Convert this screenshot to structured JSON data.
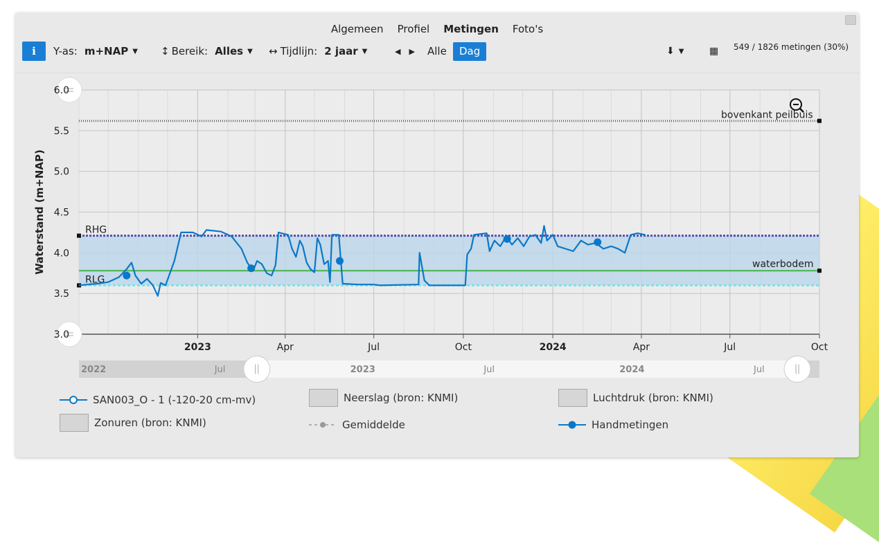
{
  "tabs": {
    "algemeen": "Algemeen",
    "profiel": "Profiel",
    "metingen": "Metingen",
    "fotos": "Foto's"
  },
  "toolbar": {
    "info_label": "i",
    "yas_label": "Y-as:",
    "yas_value": "m+NAP",
    "bereik_label": "Bereik:",
    "bereik_value": "Alles",
    "tijdlijn_label": "Tijdlijn:",
    "tijdlijn_value": "2 jaar",
    "alle_label": "Alle",
    "dag_label": "Dag",
    "metingen_count": "549 / 1826 metingen (30%)"
  },
  "legend": {
    "main_series": "SAN003_O - 1 (-120-20 cm-mv)",
    "neerslag": "Neerslag (bron: KNMI)",
    "luchtdruk": "Luchtdruk (bron: KNMI)",
    "zonuren": "Zonuren (bron: KNMI)",
    "gemiddelde": "Gemiddelde",
    "handmetingen": "Handmetingen"
  },
  "navigator": {
    "labels": [
      "2022",
      "Jul",
      "2023",
      "Jul",
      "2024",
      "Jul"
    ]
  },
  "colors": {
    "series": "#0a78c8",
    "rhg": "#5550a8",
    "rlg": "#79e3ea",
    "waterbodem": "#48b248",
    "bovenkant": "#666666",
    "band": "#bcd6ea",
    "accent": "#1a7fd4",
    "plot_bg": "#ececec"
  },
  "chart_data": {
    "type": "line",
    "ylabel": "Waterstand (m+NAP)",
    "xlabel": "",
    "ylim": [
      3.0,
      6.0
    ],
    "xlim": [
      "2022-09-01",
      "2024-10-01"
    ],
    "yticks": [
      "3.0",
      "3.5",
      "4.0",
      "4.5",
      "5.0",
      "5.5",
      "6.0"
    ],
    "xticks": [
      {
        "date": "2023-01-01",
        "label": "2023",
        "bold": true
      },
      {
        "date": "2023-04-01",
        "label": "Apr",
        "bold": false
      },
      {
        "date": "2023-07-01",
        "label": "Jul",
        "bold": false
      },
      {
        "date": "2023-10-01",
        "label": "Oct",
        "bold": false
      },
      {
        "date": "2024-01-01",
        "label": "2024",
        "bold": true
      },
      {
        "date": "2024-04-01",
        "label": "Apr",
        "bold": false
      },
      {
        "date": "2024-07-01",
        "label": "Jul",
        "bold": false
      },
      {
        "date": "2024-10-01",
        "label": "Oct",
        "bold": false
      }
    ],
    "grid": true,
    "reference_lines": [
      {
        "name": "bovenkant peilbuis",
        "value": 5.62
      },
      {
        "name": "RHG",
        "value": 4.21
      },
      {
        "name": "waterbodem",
        "value": 3.78
      },
      {
        "name": "RLG",
        "value": 3.6
      }
    ],
    "band": [
      3.6,
      4.21
    ],
    "series": [
      {
        "name": "SAN003_O - 1 (-120-20 cm-mv)",
        "points": [
          [
            "2022-09-01",
            3.6
          ],
          [
            "2022-09-10",
            3.61
          ],
          [
            "2022-09-20",
            3.62
          ],
          [
            "2022-10-01",
            3.64
          ],
          [
            "2022-10-12",
            3.7
          ],
          [
            "2022-10-20",
            3.8
          ],
          [
            "2022-10-25",
            3.88
          ],
          [
            "2022-10-29",
            3.72
          ],
          [
            "2022-11-04",
            3.62
          ],
          [
            "2022-11-10",
            3.68
          ],
          [
            "2022-11-16",
            3.6
          ],
          [
            "2022-11-21",
            3.47
          ],
          [
            "2022-11-24",
            3.63
          ],
          [
            "2022-11-29",
            3.6
          ],
          [
            "2022-12-08",
            3.9
          ],
          [
            "2022-12-15",
            4.25
          ],
          [
            "2022-12-27",
            4.25
          ],
          [
            "2023-01-05",
            4.2
          ],
          [
            "2023-01-10",
            4.28
          ],
          [
            "2023-01-25",
            4.26
          ],
          [
            "2023-02-05",
            4.2
          ],
          [
            "2023-02-15",
            4.05
          ],
          [
            "2023-02-21",
            3.88
          ],
          [
            "2023-02-27",
            3.78
          ],
          [
            "2023-03-03",
            3.9
          ],
          [
            "2023-03-08",
            3.86
          ],
          [
            "2023-03-13",
            3.75
          ],
          [
            "2023-03-18",
            3.72
          ],
          [
            "2023-03-22",
            3.85
          ],
          [
            "2023-03-25",
            4.25
          ],
          [
            "2023-04-04",
            4.22
          ],
          [
            "2023-04-08",
            4.05
          ],
          [
            "2023-04-12",
            3.95
          ],
          [
            "2023-04-16",
            4.15
          ],
          [
            "2023-04-19",
            4.08
          ],
          [
            "2023-04-23",
            3.88
          ],
          [
            "2023-04-27",
            3.8
          ],
          [
            "2023-05-01",
            3.76
          ],
          [
            "2023-05-04",
            4.18
          ],
          [
            "2023-05-07",
            4.1
          ],
          [
            "2023-05-11",
            3.86
          ],
          [
            "2023-05-15",
            3.9
          ],
          [
            "2023-05-17",
            3.64
          ],
          [
            "2023-05-19",
            4.22
          ],
          [
            "2023-05-26",
            4.22
          ],
          [
            "2023-05-30",
            3.62
          ],
          [
            "2023-06-15",
            3.61
          ],
          [
            "2023-07-01",
            3.61
          ],
          [
            "2023-07-07",
            3.6
          ],
          [
            "2023-08-16",
            3.61
          ],
          [
            "2023-08-17",
            4.0
          ],
          [
            "2023-08-22",
            3.66
          ],
          [
            "2023-08-27",
            3.6
          ],
          [
            "2023-09-15",
            3.6
          ],
          [
            "2023-10-03",
            3.6
          ],
          [
            "2023-10-05",
            3.98
          ],
          [
            "2023-10-09",
            4.05
          ],
          [
            "2023-10-12",
            4.22
          ],
          [
            "2023-10-25",
            4.24
          ],
          [
            "2023-10-28",
            4.02
          ],
          [
            "2023-11-02",
            4.15
          ],
          [
            "2023-11-08",
            4.08
          ],
          [
            "2023-11-14",
            4.2
          ],
          [
            "2023-11-20",
            4.1
          ],
          [
            "2023-11-26",
            4.18
          ],
          [
            "2023-12-02",
            4.08
          ],
          [
            "2023-12-08",
            4.2
          ],
          [
            "2023-12-14",
            4.22
          ],
          [
            "2023-12-20",
            4.12
          ],
          [
            "2023-12-23",
            4.33
          ],
          [
            "2023-12-26",
            4.15
          ],
          [
            "2024-01-01",
            4.22
          ],
          [
            "2024-01-06",
            4.08
          ],
          [
            "2024-01-14",
            4.05
          ],
          [
            "2024-01-22",
            4.02
          ],
          [
            "2024-01-30",
            4.15
          ],
          [
            "2024-02-06",
            4.1
          ],
          [
            "2024-02-14",
            4.12
          ],
          [
            "2024-02-22",
            4.05
          ],
          [
            "2024-03-01",
            4.08
          ],
          [
            "2024-03-08",
            4.05
          ],
          [
            "2024-03-15",
            4.0
          ],
          [
            "2024-03-21",
            4.22
          ],
          [
            "2024-03-28",
            4.24
          ],
          [
            "2024-04-05",
            4.22
          ]
        ]
      },
      {
        "name": "Handmetingen",
        "points": [
          [
            "2022-10-20",
            3.72
          ],
          [
            "2023-02-25",
            3.81
          ],
          [
            "2023-05-27",
            3.9
          ],
          [
            "2023-11-15",
            4.17
          ],
          [
            "2024-02-16",
            4.13
          ]
        ]
      }
    ]
  }
}
